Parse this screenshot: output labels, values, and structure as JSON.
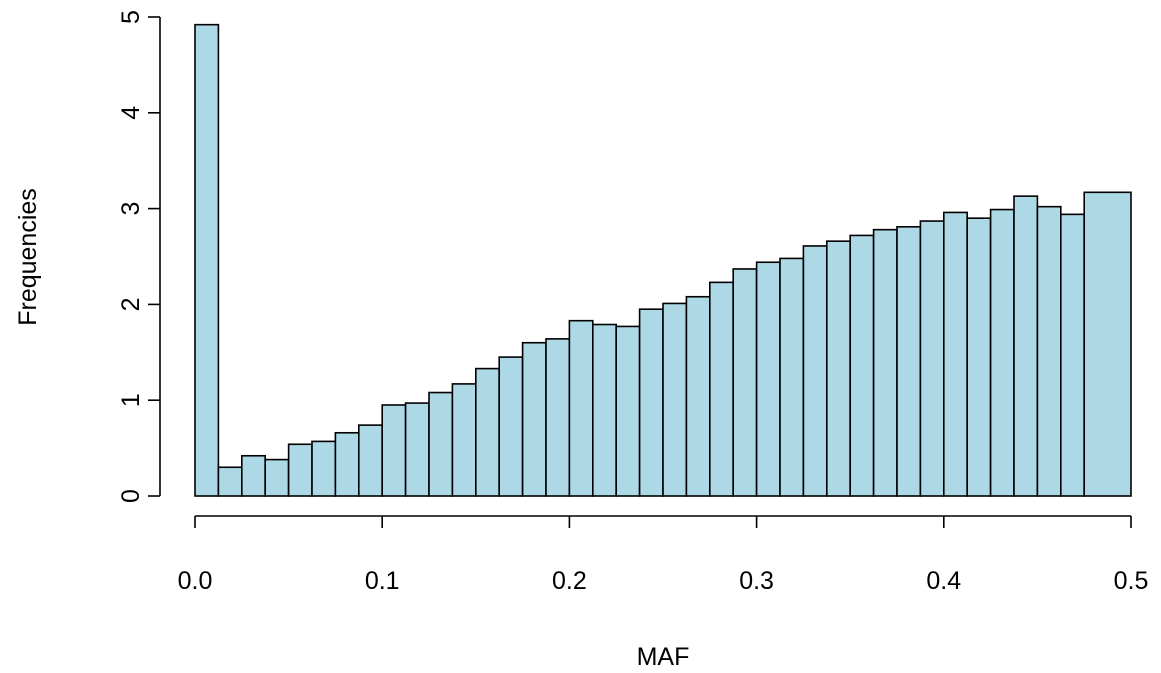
{
  "chart_data": {
    "type": "bar",
    "title": "",
    "xlabel": "MAF",
    "ylabel": "Frequencies",
    "xlim": [
      0,
      0.5
    ],
    "ylim": [
      0,
      5
    ],
    "grid": false,
    "bar_color": "#ADD8E6",
    "bar_edge_color": "#000000",
    "x_ticks": [
      "0.0",
      "0.1",
      "0.2",
      "0.3",
      "0.4",
      "0.5"
    ],
    "y_ticks": [
      "0",
      "1",
      "2",
      "3",
      "4",
      "5"
    ],
    "x_tick_values": [
      0,
      0.1,
      0.2,
      0.3,
      0.4,
      0.5
    ],
    "y_tick_values": [
      0,
      1,
      2,
      3,
      4,
      5
    ],
    "bins": [
      {
        "start": 0.0,
        "end": 0.0125,
        "value": 4.92
      },
      {
        "start": 0.0125,
        "end": 0.025,
        "value": 0.3
      },
      {
        "start": 0.025,
        "end": 0.0375,
        "value": 0.42
      },
      {
        "start": 0.0375,
        "end": 0.05,
        "value": 0.38
      },
      {
        "start": 0.05,
        "end": 0.0625,
        "value": 0.54
      },
      {
        "start": 0.0625,
        "end": 0.075,
        "value": 0.57
      },
      {
        "start": 0.075,
        "end": 0.0875,
        "value": 0.66
      },
      {
        "start": 0.0875,
        "end": 0.1,
        "value": 0.74
      },
      {
        "start": 0.1,
        "end": 0.1125,
        "value": 0.95
      },
      {
        "start": 0.1125,
        "end": 0.125,
        "value": 0.97
      },
      {
        "start": 0.125,
        "end": 0.1375,
        "value": 1.08
      },
      {
        "start": 0.1375,
        "end": 0.15,
        "value": 1.17
      },
      {
        "start": 0.15,
        "end": 0.1625,
        "value": 1.33
      },
      {
        "start": 0.1625,
        "end": 0.175,
        "value": 1.45
      },
      {
        "start": 0.175,
        "end": 0.1875,
        "value": 1.6
      },
      {
        "start": 0.1875,
        "end": 0.2,
        "value": 1.64
      },
      {
        "start": 0.2,
        "end": 0.2125,
        "value": 1.83
      },
      {
        "start": 0.2125,
        "end": 0.225,
        "value": 1.79
      },
      {
        "start": 0.225,
        "end": 0.2375,
        "value": 1.77
      },
      {
        "start": 0.2375,
        "end": 0.25,
        "value": 1.95
      },
      {
        "start": 0.25,
        "end": 0.2625,
        "value": 2.01
      },
      {
        "start": 0.2625,
        "end": 0.275,
        "value": 2.08
      },
      {
        "start": 0.275,
        "end": 0.2875,
        "value": 2.23
      },
      {
        "start": 0.2875,
        "end": 0.3,
        "value": 2.37
      },
      {
        "start": 0.3,
        "end": 0.3125,
        "value": 2.44
      },
      {
        "start": 0.3125,
        "end": 0.325,
        "value": 2.48
      },
      {
        "start": 0.325,
        "end": 0.3375,
        "value": 2.61
      },
      {
        "start": 0.3375,
        "end": 0.35,
        "value": 2.66
      },
      {
        "start": 0.35,
        "end": 0.3625,
        "value": 2.72
      },
      {
        "start": 0.3625,
        "end": 0.375,
        "value": 2.78
      },
      {
        "start": 0.375,
        "end": 0.3875,
        "value": 2.81
      },
      {
        "start": 0.3875,
        "end": 0.4,
        "value": 2.87
      },
      {
        "start": 0.4,
        "end": 0.4125,
        "value": 2.96
      },
      {
        "start": 0.4125,
        "end": 0.425,
        "value": 2.9
      },
      {
        "start": 0.425,
        "end": 0.4375,
        "value": 2.99
      },
      {
        "start": 0.4375,
        "end": 0.45,
        "value": 3.13
      },
      {
        "start": 0.45,
        "end": 0.4625,
        "value": 3.02
      },
      {
        "start": 0.4625,
        "end": 0.475,
        "value": 2.94
      },
      {
        "start": 0.475,
        "end": 0.5,
        "value": 3.17
      }
    ]
  }
}
